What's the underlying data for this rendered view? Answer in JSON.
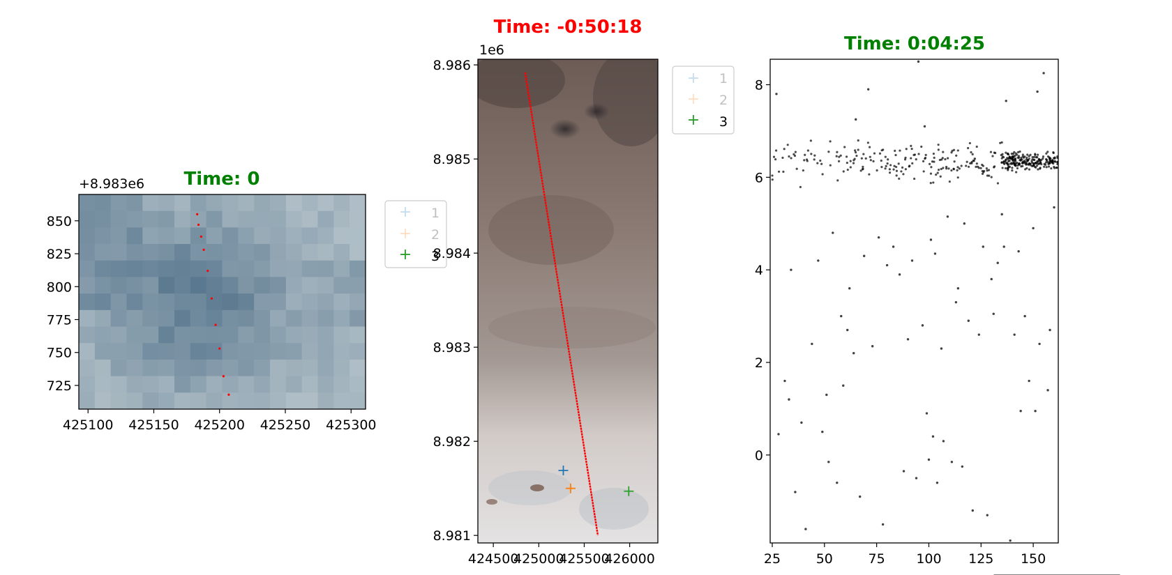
{
  "chart_data": [
    {
      "type": "scatter",
      "title": "Time: 0",
      "title_color": "#008000",
      "offset_text": "+8.983e6",
      "x_ticks": [
        "425100",
        "425150",
        "425200",
        "425250",
        "425300"
      ],
      "y_ticks": [
        "850",
        "825",
        "800",
        "775",
        "750",
        "725"
      ],
      "xlim": [
        425093,
        425311
      ],
      "ylim": [
        707,
        870
      ],
      "background": "pixelated blue-grey image",
      "series": [
        {
          "color": "#ff0000",
          "x": [
            425183,
            425184,
            425186,
            425188,
            425191,
            425194,
            425197,
            425200,
            425203,
            425207
          ],
          "y": [
            855,
            847,
            838,
            828,
            812,
            791,
            771,
            753,
            732,
            718
          ]
        }
      ]
    },
    {
      "type": "scatter",
      "title": "Time: -0:50:18",
      "title_color": "#ff0000",
      "offset_text": "1e6",
      "x_ticks": [
        "424500",
        "425000",
        "425500",
        "426000"
      ],
      "y_ticks": [
        "8.986",
        "8.985",
        "8.984",
        "8.983",
        "8.982",
        "8.981"
      ],
      "xlim": [
        424330,
        426310
      ],
      "ylim": [
        8.98092,
        8.98606
      ],
      "background": "aerial image, dark brown to light grey",
      "track": {
        "color": "#ff0000",
        "x": [
          424850,
          425650
        ],
        "y": [
          8.98592,
          8.981
        ]
      },
      "markers": [
        {
          "label": "1",
          "x": 425270,
          "y": 8.98169,
          "color": "#1f77b4"
        },
        {
          "label": "2",
          "x": 425350,
          "y": 8.9815,
          "color": "#ff7f0e"
        },
        {
          "label": "3",
          "x": 425990,
          "y": 8.98147,
          "color": "#2ca02c"
        }
      ],
      "legend": [
        "1",
        "2",
        "3"
      ]
    },
    {
      "type": "scatter",
      "title": "Time: 0:04:25",
      "title_color": "#008000",
      "x_ticks": [
        "25",
        "50",
        "75",
        "100",
        "125",
        "150"
      ],
      "y_ticks": [
        "8",
        "6",
        "4",
        "2",
        "0"
      ],
      "xlim": [
        24,
        162
      ],
      "ylim": [
        -1.9,
        8.55
      ],
      "point_color": "#000000",
      "band": {
        "y_center": 6.35,
        "dense_from": 135,
        "dense_to": 162
      },
      "series": [
        {
          "x": [
            27,
            28,
            31,
            33,
            34,
            36,
            39,
            41,
            44,
            47,
            49,
            51,
            52,
            54,
            56,
            58,
            59,
            61,
            62,
            64,
            65,
            67,
            69,
            71,
            73,
            76,
            78,
            80,
            83,
            86,
            88,
            90,
            92,
            94,
            95,
            97,
            98,
            99,
            100,
            101,
            102,
            103,
            104,
            106,
            107,
            109,
            111,
            113,
            114,
            116,
            117,
            119,
            121,
            122,
            124,
            126,
            128,
            130,
            131,
            133,
            135,
            136,
            137,
            139,
            141,
            143,
            144,
            146,
            148,
            150,
            151,
            152,
            153,
            155,
            157,
            158,
            160
          ],
          "y": [
            7.8,
            0.45,
            1.6,
            1.2,
            4.0,
            -0.8,
            0.7,
            -1.6,
            2.4,
            4.2,
            0.5,
            1.3,
            -0.15,
            4.8,
            -0.6,
            3.0,
            1.5,
            2.7,
            3.6,
            2.2,
            7.25,
            -0.9,
            4.3,
            7.9,
            2.35,
            4.7,
            -1.5,
            4.1,
            4.5,
            3.9,
            -0.35,
            2.5,
            4.2,
            -0.5,
            8.5,
            2.8,
            7.1,
            0.9,
            -0.1,
            4.65,
            0.4,
            4.35,
            -0.6,
            2.3,
            0.3,
            5.15,
            -0.15,
            3.3,
            3.6,
            -0.25,
            5.0,
            2.9,
            -1.2,
            6.4,
            2.6,
            4.5,
            -1.3,
            3.8,
            3.05,
            4.15,
            5.2,
            4.5,
            7.65,
            -1.85,
            2.6,
            4.4,
            0.95,
            3.0,
            1.6,
            4.9,
            0.95,
            7.85,
            2.4,
            8.25,
            1.4,
            2.7,
            5.35
          ]
        }
      ]
    }
  ]
}
